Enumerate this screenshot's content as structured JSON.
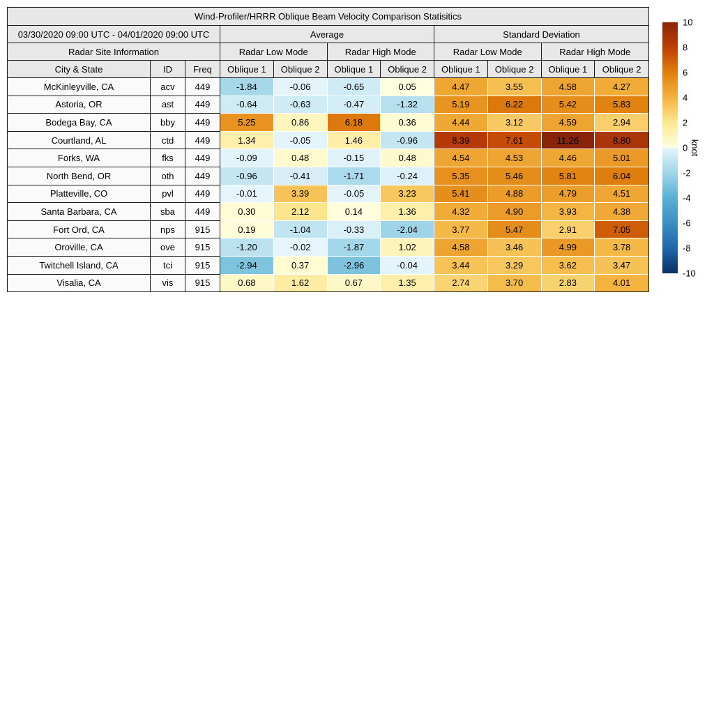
{
  "chart_data": {
    "type": "heatmap",
    "title": "Wind-Profiler/HRRR Oblique Beam Velocity Comparison Statisitics",
    "header": {
      "date_range": "03/30/2020 09:00 UTC - 04/01/2020 09:00 UTC",
      "group_average": "Average",
      "group_std": "Standard Deviation",
      "site_info": "Radar Site Information",
      "low_mode": "Radar Low Mode",
      "high_mode": "Radar High Mode",
      "col_city": "City & State",
      "col_id": "ID",
      "col_freq": "Freq",
      "oblique1": "Oblique 1",
      "oblique2": "Oblique 2"
    },
    "rows": [
      {
        "city": "McKinleyville, CA",
        "id": "acv",
        "freq": "449",
        "avg": [
          -1.84,
          -0.06,
          -0.65,
          0.05
        ],
        "std": [
          4.47,
          3.55,
          4.58,
          4.27
        ]
      },
      {
        "city": "Astoria, OR",
        "id": "ast",
        "freq": "449",
        "avg": [
          -0.64,
          -0.63,
          -0.47,
          -1.32
        ],
        "std": [
          5.19,
          6.22,
          5.42,
          5.83
        ]
      },
      {
        "city": "Bodega Bay, CA",
        "id": "bby",
        "freq": "449",
        "avg": [
          5.25,
          0.86,
          6.18,
          0.36
        ],
        "std": [
          4.44,
          3.12,
          4.59,
          2.94
        ]
      },
      {
        "city": "Courtland, AL",
        "id": "ctd",
        "freq": "449",
        "avg": [
          1.34,
          -0.05,
          1.46,
          -0.96
        ],
        "std": [
          8.39,
          7.61,
          11.26,
          8.8
        ]
      },
      {
        "city": "Forks, WA",
        "id": "fks",
        "freq": "449",
        "avg": [
          -0.09,
          0.48,
          -0.15,
          0.48
        ],
        "std": [
          4.54,
          4.53,
          4.46,
          5.01
        ]
      },
      {
        "city": "North Bend, OR",
        "id": "oth",
        "freq": "449",
        "avg": [
          -0.96,
          -0.41,
          -1.71,
          -0.24
        ],
        "std": [
          5.35,
          5.46,
          5.81,
          6.04
        ]
      },
      {
        "city": "Platteville, CO",
        "id": "pvl",
        "freq": "449",
        "avg": [
          -0.01,
          3.39,
          -0.05,
          3.23
        ],
        "std": [
          5.41,
          4.88,
          4.79,
          4.51
        ]
      },
      {
        "city": "Santa Barbara, CA",
        "id": "sba",
        "freq": "449",
        "avg": [
          0.3,
          2.12,
          0.14,
          1.36
        ],
        "std": [
          4.32,
          4.9,
          3.93,
          4.38
        ]
      },
      {
        "city": "Fort Ord, CA",
        "id": "nps",
        "freq": "915",
        "avg": [
          0.19,
          -1.04,
          -0.33,
          -2.04
        ],
        "std": [
          3.77,
          5.47,
          2.91,
          7.05
        ]
      },
      {
        "city": "Oroville, CA",
        "id": "ove",
        "freq": "915",
        "avg": [
          -1.2,
          -0.02,
          -1.87,
          1.02
        ],
        "std": [
          4.58,
          3.46,
          4.99,
          3.78
        ]
      },
      {
        "city": "Twitchell Island, CA",
        "id": "tci",
        "freq": "915",
        "avg": [
          -2.94,
          0.37,
          -2.96,
          -0.04
        ],
        "std": [
          3.44,
          3.29,
          3.62,
          3.47
        ]
      },
      {
        "city": "Visalia, CA",
        "id": "vis",
        "freq": "915",
        "avg": [
          0.68,
          1.62,
          0.67,
          1.35
        ],
        "std": [
          2.74,
          3.7,
          2.83,
          4.01
        ]
      }
    ],
    "colorbar": {
      "label": "knot",
      "min": -10,
      "max": 10,
      "ticks": [
        10,
        8,
        6,
        4,
        2,
        0,
        -2,
        -4,
        -6,
        -8,
        -10
      ]
    },
    "colormap": {
      "positive": [
        [
          0,
          [
            255,
            255,
            225
          ]
        ],
        [
          2,
          [
            253,
            232,
            146
          ]
        ],
        [
          4,
          [
            244,
            179,
            63
          ]
        ],
        [
          6,
          [
            224,
            127,
            13
          ]
        ],
        [
          8,
          [
            190,
            62,
            4
          ]
        ],
        [
          10,
          [
            138,
            36,
            8
          ]
        ]
      ],
      "negative": [
        [
          0,
          [
            229,
            245,
            251
          ]
        ],
        [
          2,
          [
            160,
            213,
            232
          ]
        ],
        [
          4,
          [
            88,
            176,
            212
          ]
        ],
        [
          6,
          [
            58,
            143,
            194
          ]
        ],
        [
          8,
          [
            32,
            102,
            172
          ]
        ],
        [
          10,
          [
            11,
            48,
            96
          ]
        ]
      ]
    }
  }
}
